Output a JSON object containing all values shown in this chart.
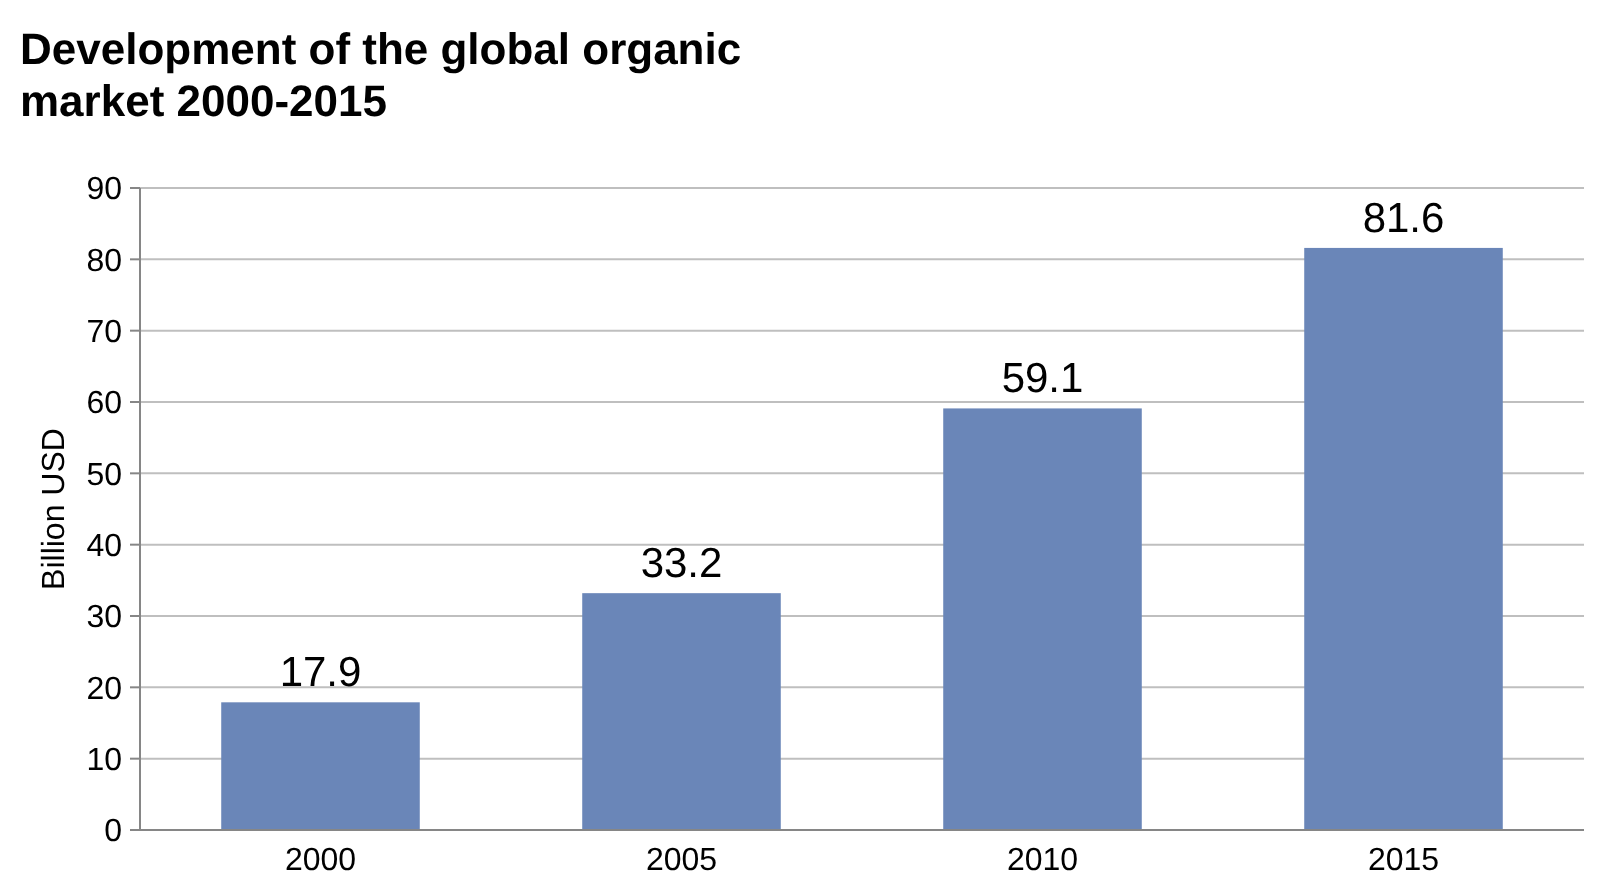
{
  "chart_data": {
    "type": "bar",
    "title": "Development of the global organic market 2000-2015",
    "ylabel": "Billion USD",
    "categories": [
      "2000",
      "2005",
      "2010",
      "2015"
    ],
    "values": [
      17.9,
      33.2,
      59.1,
      81.6
    ],
    "color": "#6a86b8",
    "ylim": [
      0,
      90
    ],
    "yticks": [
      0,
      10,
      20,
      30,
      40,
      50,
      60,
      70,
      80,
      90
    ],
    "grid": "y",
    "data_labels": true
  }
}
